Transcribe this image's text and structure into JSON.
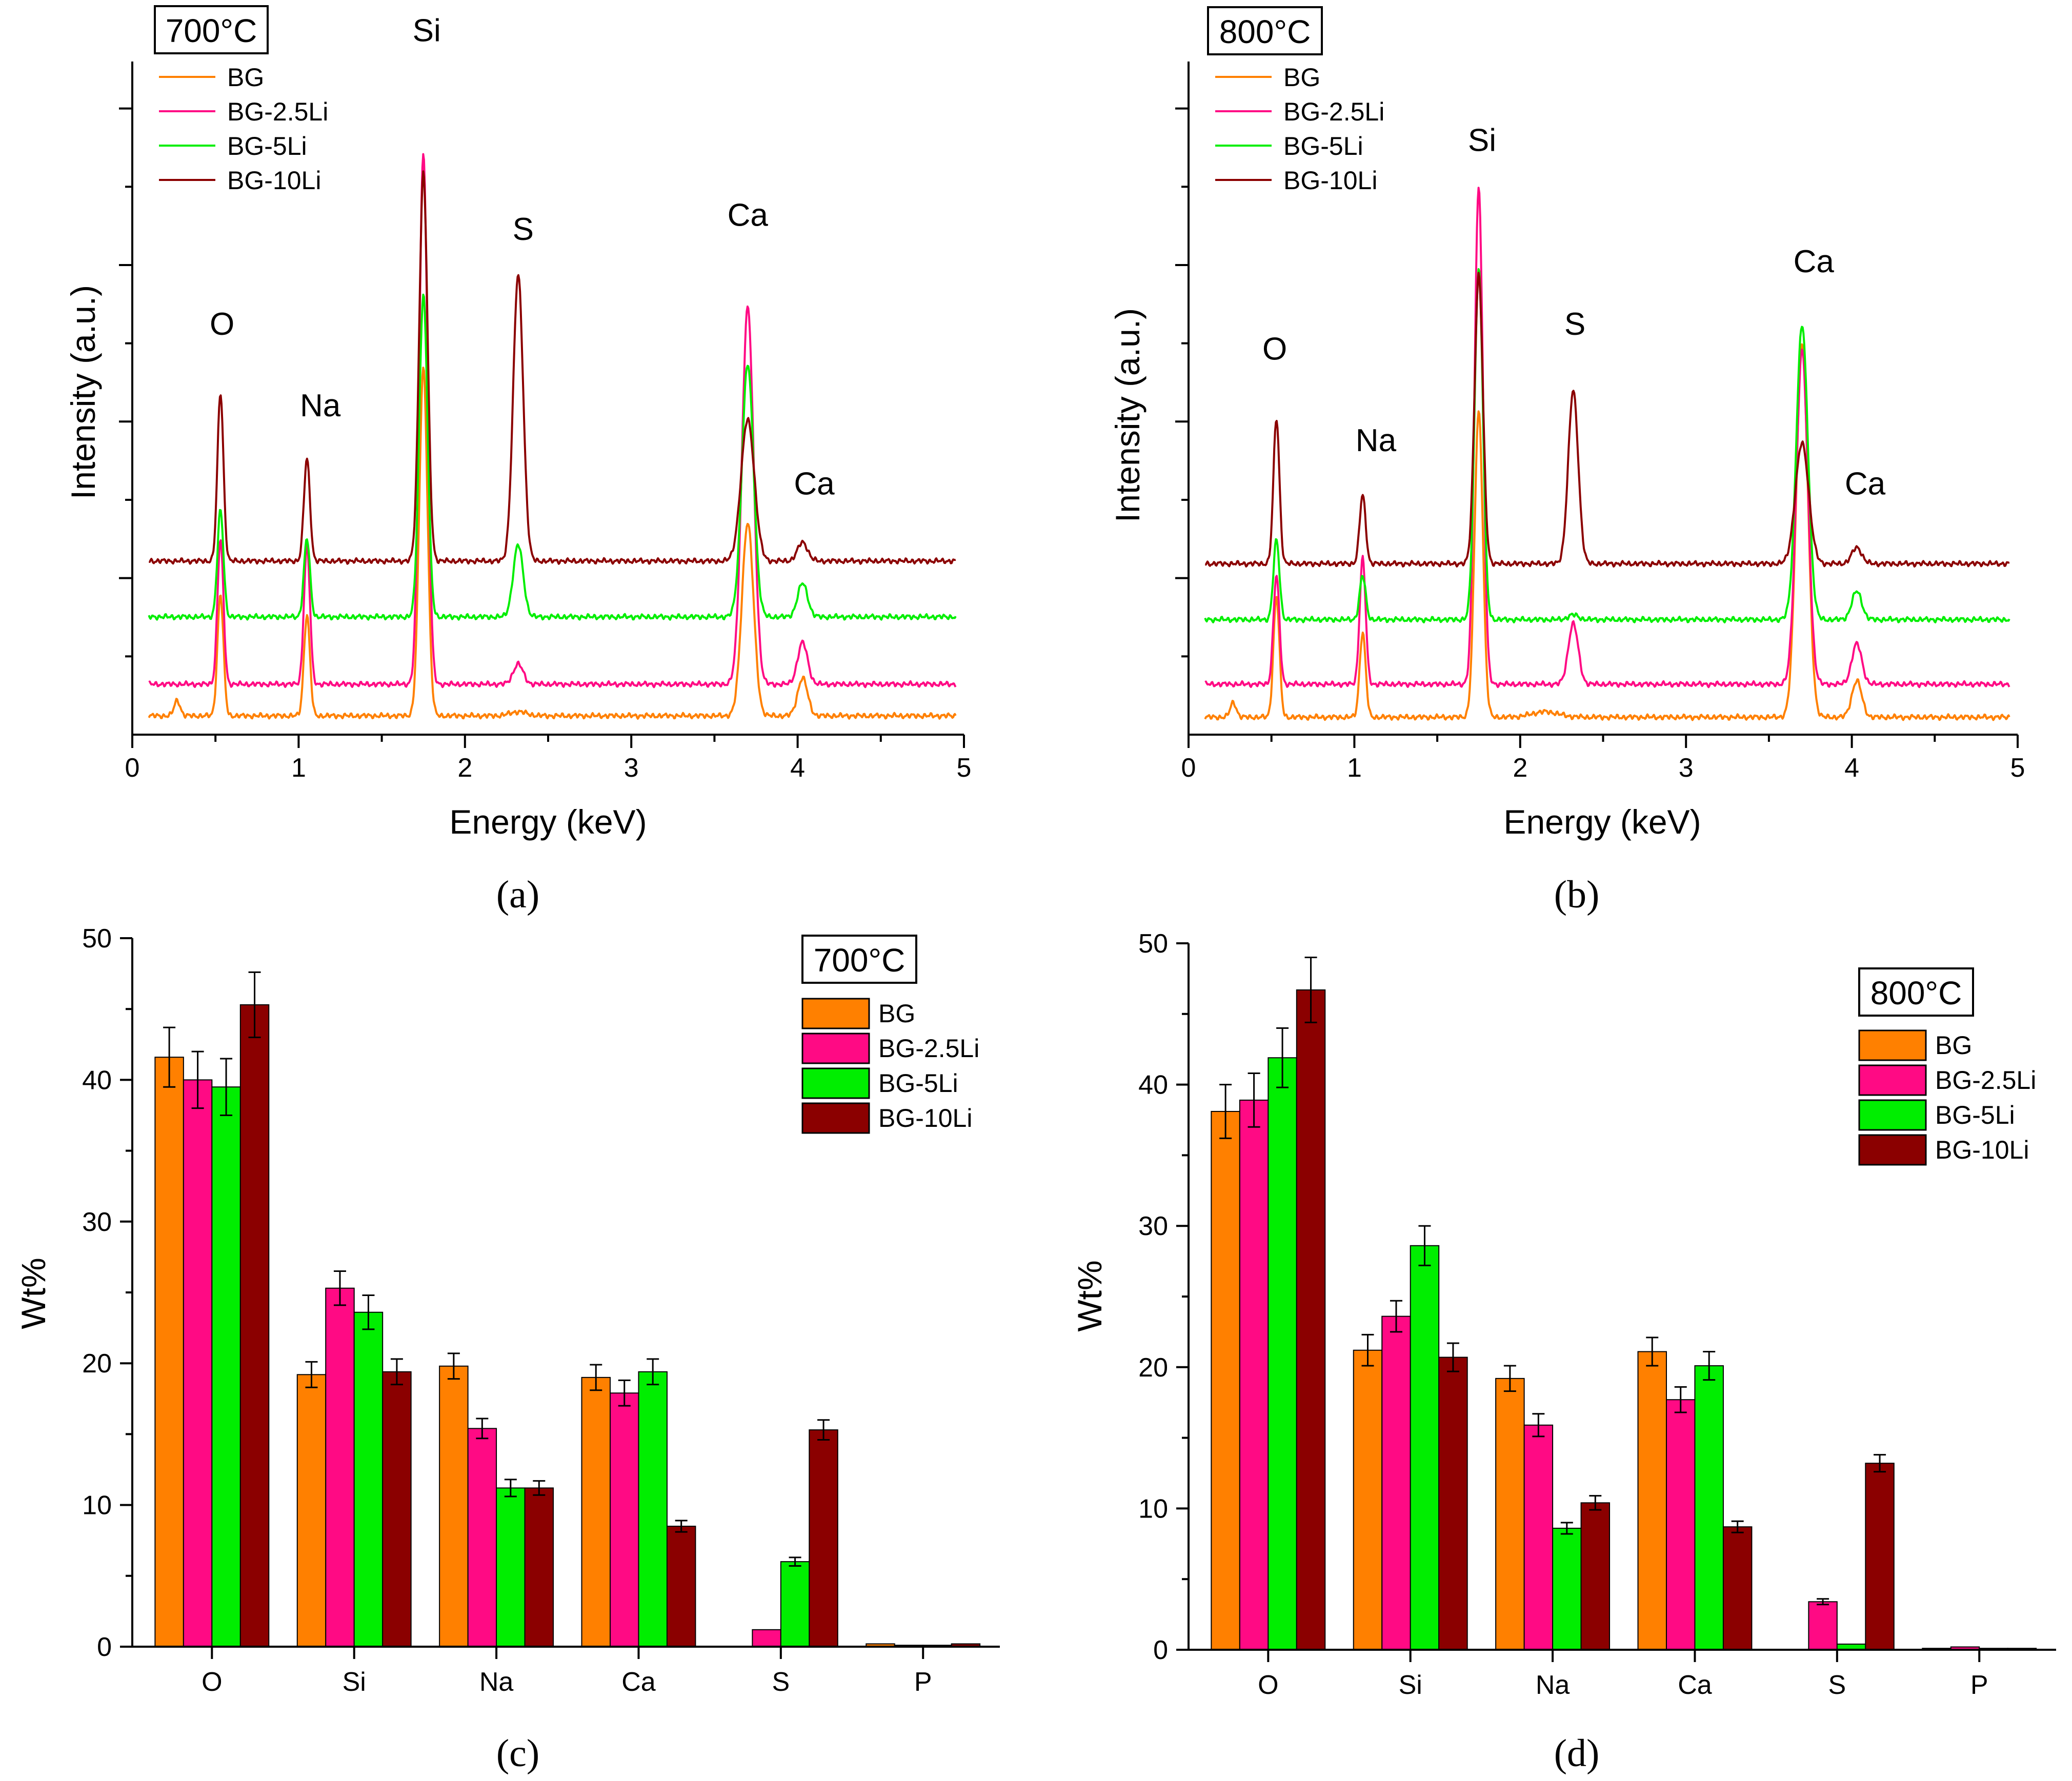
{
  "colors": {
    "BG": "#ff8000",
    "BG-2.5Li": "#ff0a84",
    "BG-5Li": "#00ee00",
    "BG-10Li": "#8b0000"
  },
  "chart_data": [
    {
      "id": "a",
      "type": "line",
      "caption": "(a)",
      "temperature_label": "700°C",
      "xlabel": "Energy (keV)",
      "ylabel": "Intensity (a.u.)",
      "xlim": [
        0,
        5
      ],
      "ylim": [
        0,
        100
      ],
      "x_ticks": [
        "0",
        "1",
        "2",
        "3",
        "4",
        "5"
      ],
      "legend": [
        "BG",
        "BG-2.5Li",
        "BG-5Li",
        "BG-10Li"
      ],
      "peak_labels": [
        {
          "text": "O",
          "x": 0.54,
          "y": 59.4
        },
        {
          "text": "Na",
          "x": 1.13,
          "y": 47.3
        },
        {
          "text": "Si",
          "x": 1.77,
          "y": 103.0
        },
        {
          "text": "S",
          "x": 2.35,
          "y": 73.5
        },
        {
          "text": "Ca",
          "x": 3.7,
          "y": 75.6
        },
        {
          "text": "Ca",
          "x": 4.1,
          "y": 35.7
        }
      ],
      "series": [
        {
          "name": "BG",
          "baseline": 2.8,
          "noise_amp": 0.22,
          "peaks": [
            [
              0.27,
              2.3,
              0.018
            ],
            [
              0.53,
              18.0,
              0.018
            ],
            [
              1.05,
              15.0,
              0.018
            ],
            [
              1.75,
              51.7,
              0.025
            ],
            [
              2.32,
              0.6,
              0.05
            ],
            [
              3.7,
              28.7,
              0.035
            ],
            [
              4.03,
              5.6,
              0.03
            ]
          ]
        },
        {
          "name": "BG-2.5Li",
          "baseline": 7.5,
          "noise_amp": 0.22,
          "peaks": [
            [
              0.53,
              21.4,
              0.018
            ],
            [
              1.05,
              20.6,
              0.018
            ],
            [
              1.75,
              79.0,
              0.025
            ],
            [
              2.32,
              3.0,
              0.03
            ],
            [
              3.7,
              56.0,
              0.035
            ],
            [
              4.03,
              6.2,
              0.03
            ]
          ]
        },
        {
          "name": "BG-5Li",
          "baseline": 17.5,
          "noise_amp": 0.22,
          "peaks": [
            [
              0.53,
              15.8,
              0.018
            ],
            [
              1.05,
              11.6,
              0.018
            ],
            [
              1.75,
              48.0,
              0.025
            ],
            [
              2.32,
              10.7,
              0.03
            ],
            [
              3.7,
              37.5,
              0.035
            ],
            [
              4.03,
              5.0,
              0.03
            ]
          ]
        },
        {
          "name": "BG-10Li",
          "baseline": 25.8,
          "noise_amp": 0.22,
          "peaks": [
            [
              0.53,
              25.0,
              0.018
            ],
            [
              1.05,
              15.2,
              0.018
            ],
            [
              1.75,
              57.6,
              0.025
            ],
            [
              2.32,
              42.5,
              0.03
            ],
            [
              3.7,
              21.0,
              0.04
            ],
            [
              4.03,
              2.8,
              0.03
            ]
          ]
        }
      ]
    },
    {
      "id": "b",
      "type": "line",
      "caption": "(b)",
      "temperature_label": "800°C",
      "xlabel": "Energy (keV)",
      "ylabel": "Intensity (a.u.)",
      "xlim": [
        0,
        5
      ],
      "ylim": [
        0,
        100
      ],
      "x_ticks": [
        "0",
        "1",
        "2",
        "3",
        "4",
        "5"
      ],
      "legend": [
        "BG",
        "BG-2.5Li",
        "BG-5Li",
        "BG-10Li"
      ],
      "peak_labels": [
        {
          "text": "O",
          "x": 0.52,
          "y": 55.7
        },
        {
          "text": "Na",
          "x": 1.13,
          "y": 42.1
        },
        {
          "text": "Si",
          "x": 1.77,
          "y": 86.7
        },
        {
          "text": "S",
          "x": 2.33,
          "y": 59.4
        },
        {
          "text": "Ca",
          "x": 3.77,
          "y": 68.7
        },
        {
          "text": "Ca",
          "x": 4.08,
          "y": 35.7
        }
      ],
      "series": [
        {
          "name": "BG",
          "baseline": 2.6,
          "noise_amp": 0.22,
          "peaks": [
            [
              0.27,
              2.2,
              0.018
            ],
            [
              0.53,
              18.0,
              0.018
            ],
            [
              1.05,
              12.6,
              0.018
            ],
            [
              1.75,
              45.4,
              0.025
            ],
            [
              2.15,
              0.8,
              0.08
            ],
            [
              3.7,
              55.6,
              0.035
            ],
            [
              4.03,
              5.4,
              0.03
            ]
          ]
        },
        {
          "name": "BG-2.5Li",
          "baseline": 7.5,
          "noise_amp": 0.22,
          "peaks": [
            [
              0.53,
              16.1,
              0.018
            ],
            [
              1.05,
              18.7,
              0.018
            ],
            [
              1.75,
              74.0,
              0.025
            ],
            [
              2.32,
              9.0,
              0.03
            ],
            [
              3.7,
              49.6,
              0.035
            ],
            [
              4.03,
              6.0,
              0.03
            ]
          ]
        },
        {
          "name": "BG-5Li",
          "baseline": 17.1,
          "noise_amp": 0.22,
          "peaks": [
            [
              0.53,
              11.8,
              0.018
            ],
            [
              1.05,
              6.5,
              0.018
            ],
            [
              1.75,
              52.2,
              0.025
            ],
            [
              2.32,
              0.7,
              0.03
            ],
            [
              3.7,
              43.7,
              0.035
            ],
            [
              4.03,
              4.2,
              0.03
            ]
          ]
        },
        {
          "name": "BG-10Li",
          "baseline": 25.4,
          "noise_amp": 0.22,
          "peaks": [
            [
              0.53,
              21.6,
              0.018
            ],
            [
              1.05,
              10.2,
              0.018
            ],
            [
              1.75,
              42.9,
              0.025
            ],
            [
              2.32,
              25.7,
              0.03
            ],
            [
              3.7,
              17.9,
              0.04
            ],
            [
              4.03,
              2.4,
              0.03
            ]
          ]
        }
      ]
    },
    {
      "id": "c",
      "type": "bar",
      "caption": "(c)",
      "temperature_label": "700°C",
      "xlabel": "",
      "ylabel": "Wt%",
      "ylim": [
        0,
        50
      ],
      "y_ticks": [
        0,
        10,
        20,
        30,
        40,
        50
      ],
      "categories": [
        "O",
        "Si",
        "Na",
        "Ca",
        "S",
        "P"
      ],
      "series": [
        {
          "name": "BG",
          "values": [
            41.6,
            19.2,
            19.8,
            19.0,
            0,
            0.2
          ],
          "errors": [
            2.1,
            0.9,
            0.9,
            0.9,
            0,
            0
          ]
        },
        {
          "name": "BG-2.5Li",
          "values": [
            40.0,
            25.3,
            15.4,
            17.9,
            1.2,
            0.1
          ],
          "errors": [
            2.0,
            1.2,
            0.7,
            0.9,
            0,
            0
          ]
        },
        {
          "name": "BG-5Li",
          "values": [
            39.5,
            23.6,
            11.2,
            19.4,
            6.0,
            0.1
          ],
          "errors": [
            2.0,
            1.2,
            0.6,
            0.9,
            0.3,
            0
          ]
        },
        {
          "name": "BG-10Li",
          "values": [
            45.3,
            19.4,
            11.2,
            8.5,
            15.3,
            0.2
          ],
          "errors": [
            2.3,
            0.9,
            0.5,
            0.4,
            0.7,
            0
          ]
        }
      ]
    },
    {
      "id": "d",
      "type": "bar",
      "caption": "(d)",
      "temperature_label": "800°C",
      "xlabel": "",
      "ylabel": "Wt%",
      "ylim": [
        0,
        50
      ],
      "y_ticks": [
        0,
        10,
        20,
        30,
        40,
        50
      ],
      "categories": [
        "O",
        "Si",
        "Na",
        "Ca",
        "S",
        "P"
      ],
      "series": [
        {
          "name": "BG",
          "values": [
            38.1,
            21.2,
            19.2,
            21.1,
            0,
            0.1
          ],
          "errors": [
            1.9,
            1.1,
            0.9,
            1.0,
            0,
            0
          ]
        },
        {
          "name": "BG-2.5Li",
          "values": [
            38.9,
            23.6,
            15.9,
            17.7,
            3.4,
            0.2
          ],
          "errors": [
            1.9,
            1.1,
            0.8,
            0.9,
            0.2,
            0
          ]
        },
        {
          "name": "BG-5Li",
          "values": [
            41.9,
            28.6,
            8.6,
            20.1,
            0.4,
            0.1
          ],
          "errors": [
            2.1,
            1.4,
            0.4,
            1.0,
            0,
            0
          ]
        },
        {
          "name": "BG-10Li",
          "values": [
            46.7,
            20.7,
            10.4,
            8.7,
            13.2,
            0.1
          ],
          "errors": [
            2.3,
            1.0,
            0.5,
            0.4,
            0.6,
            0
          ]
        }
      ]
    }
  ]
}
